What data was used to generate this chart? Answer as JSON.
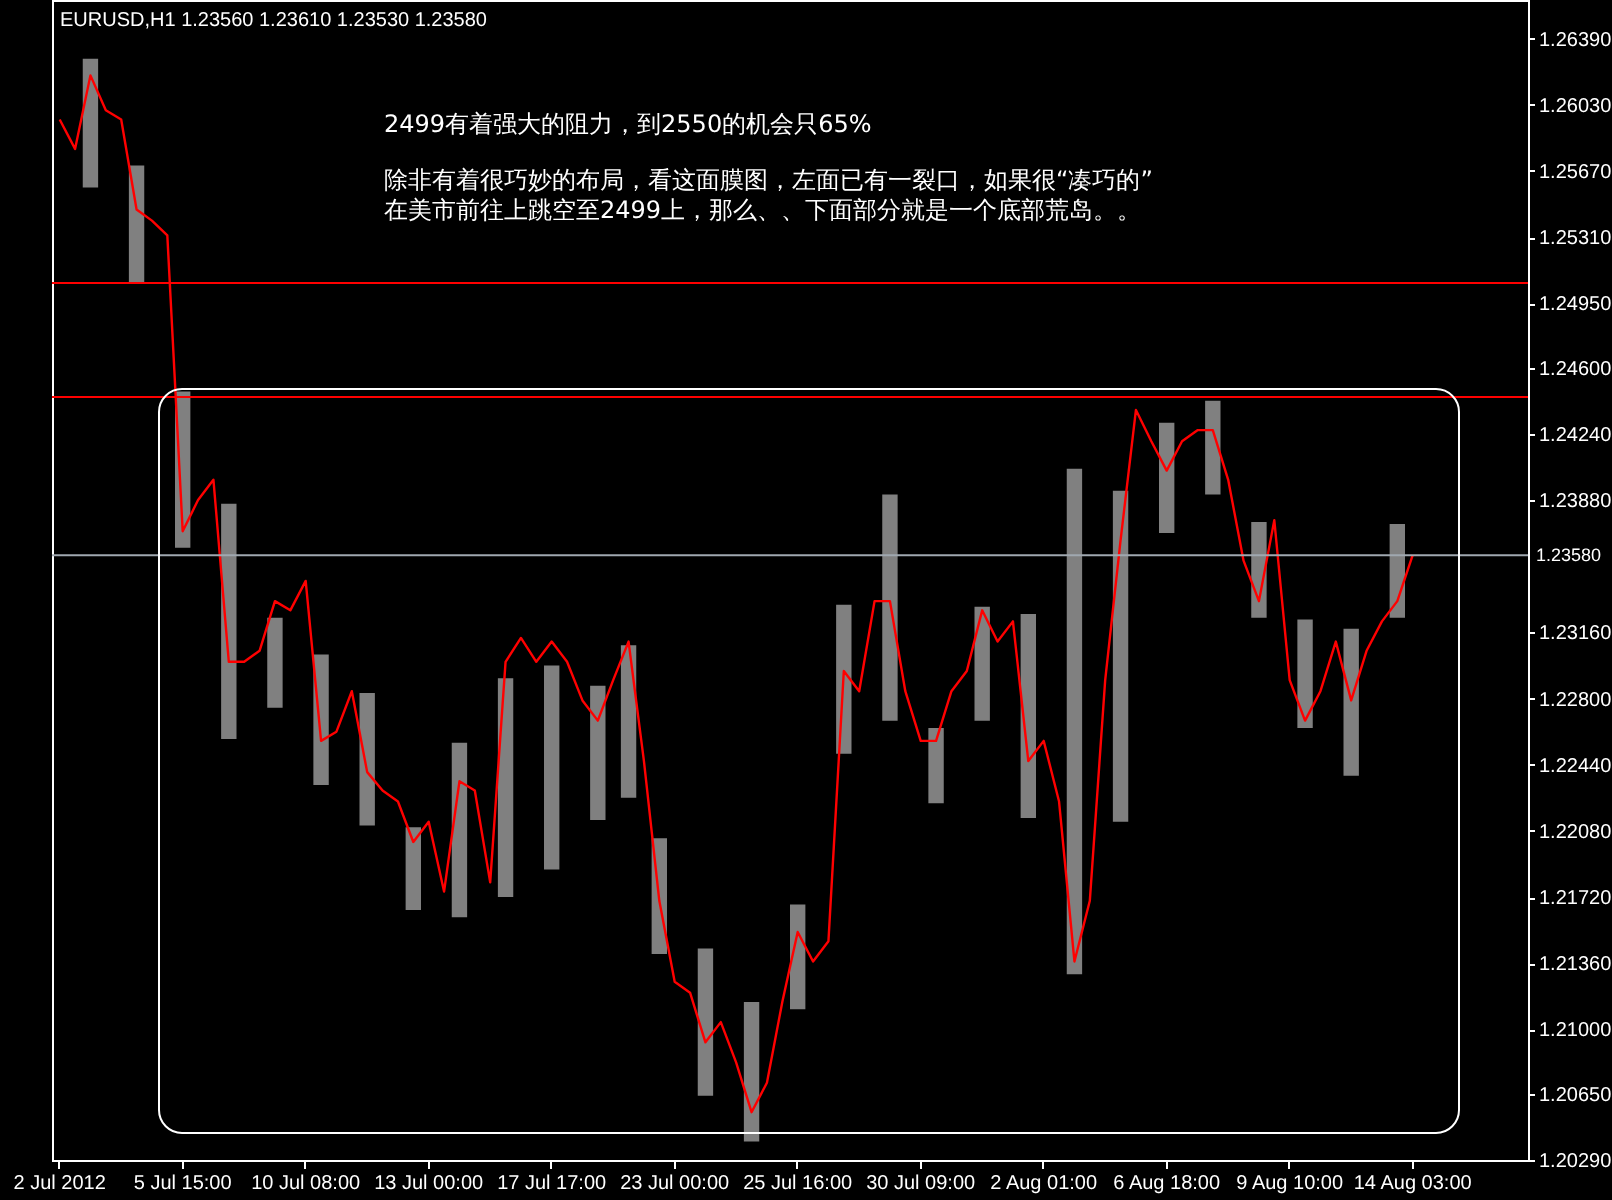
{
  "chart_data": {
    "type": "line",
    "title": "EURUSD,H1  1.23560 1.23610 1.23530 1.23580",
    "annotations": [
      "2499有着强大的阻力，到2550的机会只65%",
      "除非有着很巧妙的布局，看这面膜图，左面已有一裂口，如果很“凑巧的”",
      "在美市前往上跳空至2499上，那么、、下面部分就是一个底部荒岛。。"
    ],
    "categories": [
      "2 Jul 2012",
      null,
      null,
      null,
      null,
      null,
      null,
      null,
      "5 Jul 15:00",
      null,
      null,
      null,
      null,
      null,
      null,
      null,
      "10 Jul 08:00",
      null,
      null,
      null,
      null,
      null,
      null,
      null,
      "13 Jul 00:00",
      null,
      null,
      null,
      null,
      null,
      null,
      null,
      "17 Jul 17:00",
      null,
      null,
      null,
      null,
      null,
      null,
      null,
      "23 Jul 00:00",
      null,
      null,
      null,
      null,
      null,
      null,
      null,
      "25 Jul 16:00",
      null,
      null,
      null,
      null,
      null,
      null,
      null,
      "30 Jul 09:00",
      null,
      null,
      null,
      null,
      null,
      null,
      null,
      "2 Aug 01:00",
      null,
      null,
      null,
      null,
      null,
      null,
      null,
      "6 Aug 18:00",
      null,
      null,
      null,
      null,
      null,
      null,
      null,
      "9 Aug 10:00",
      null,
      null,
      null,
      null,
      null,
      null,
      null,
      "14 Aug 03:00",
      null,
      null,
      null,
      null,
      null,
      null,
      null
    ],
    "ylim": [
      1.2029,
      1.266
    ],
    "yticks": [
      {
        "value": 1.2029,
        "label": "1.20290"
      },
      {
        "value": 1.2065,
        "label": "1.20650"
      },
      {
        "value": 1.21,
        "label": "1.21000"
      },
      {
        "value": 1.2136,
        "label": "1.21360"
      },
      {
        "value": 1.2172,
        "label": "1.21720"
      },
      {
        "value": 1.2208,
        "label": "1.22080"
      },
      {
        "value": 1.2244,
        "label": "1.22440"
      },
      {
        "value": 1.228,
        "label": "1.22800"
      },
      {
        "value": 1.2316,
        "label": "1.23160"
      },
      {
        "value": 1.2388,
        "label": "1.23880"
      },
      {
        "value": 1.2424,
        "label": "1.24240"
      },
      {
        "value": 1.246,
        "label": "1.24600"
      },
      {
        "value": 1.2495,
        "label": "1.24950"
      },
      {
        "value": 1.2531,
        "label": "1.25310"
      },
      {
        "value": 1.2567,
        "label": "1.25670"
      },
      {
        "value": 1.2603,
        "label": "1.26030"
      },
      {
        "value": 1.2639,
        "label": "1.26390"
      }
    ],
    "ref_lines": [
      {
        "axis": "y",
        "value": 1.2506,
        "color": "#ff0000"
      },
      {
        "axis": "y",
        "value": 1.2444,
        "color": "#ff0000"
      },
      {
        "axis": "y",
        "value": 1.2358,
        "label": "1.23580",
        "color": "#a0a8b0"
      }
    ],
    "series": [
      {
        "type": "bar",
        "color": "#808080",
        "base": [
          null,
          null,
          1.2558,
          null,
          null,
          1.2506,
          null,
          null,
          1.2362,
          null,
          null,
          1.2258,
          null,
          null,
          1.2275,
          null,
          null,
          1.2233,
          null,
          null,
          1.2211,
          null,
          null,
          1.2165,
          null,
          null,
          1.2161,
          null,
          null,
          1.2172,
          null,
          null,
          1.2187,
          null,
          null,
          1.2214,
          null,
          1.2226,
          null,
          1.2141,
          null,
          null,
          1.2064,
          null,
          null,
          1.2039,
          null,
          null,
          1.2111,
          null,
          null,
          1.225,
          null,
          null,
          1.2268,
          null,
          null,
          1.2223,
          null,
          null,
          1.2268,
          null,
          null,
          1.2215,
          null,
          null,
          1.213,
          null,
          null,
          1.2213,
          null,
          null,
          1.237,
          null,
          null,
          1.2391,
          null,
          null,
          1.2324,
          null,
          null,
          1.2264,
          null,
          null,
          1.2238,
          null,
          null,
          1.2324,
          null,
          null,
          null,
          null,
          null,
          null,
          null,
          null
        ],
        "values": [
          null,
          null,
          0.007,
          null,
          null,
          0.0064,
          null,
          null,
          0.0085,
          null,
          null,
          0.0128,
          null,
          null,
          0.0049,
          null,
          null,
          0.0071,
          null,
          null,
          0.0072,
          null,
          null,
          0.0045,
          null,
          null,
          0.0095,
          null,
          null,
          0.0119,
          null,
          null,
          0.0111,
          null,
          null,
          0.0073,
          null,
          0.0083,
          null,
          0.0063,
          null,
          null,
          0.008,
          null,
          null,
          0.0076,
          null,
          null,
          0.0057,
          null,
          null,
          0.0081,
          null,
          null,
          0.0123,
          null,
          null,
          0.0041,
          null,
          null,
          0.0062,
          null,
          null,
          0.0111,
          null,
          null,
          0.0275,
          null,
          null,
          0.018,
          null,
          null,
          0.006,
          null,
          null,
          0.0051,
          null,
          null,
          0.0052,
          null,
          null,
          0.0059,
          null,
          null,
          0.008,
          null,
          null,
          0.0051,
          null,
          null,
          null,
          null,
          null,
          null,
          null,
          null
        ]
      },
      {
        "color": "#ff0000",
        "values": [
          1.2595,
          1.2579,
          1.2619,
          1.26,
          1.2595,
          1.2546,
          1.254,
          1.2532,
          1.2371,
          1.2388,
          1.2399,
          1.23,
          1.23,
          1.2306,
          1.2333,
          1.2328,
          1.2344,
          1.2257,
          1.2262,
          1.2284,
          1.224,
          1.223,
          1.2224,
          1.2202,
          1.2213,
          1.2175,
          1.2235,
          1.223,
          1.218,
          1.23,
          1.2313,
          1.23,
          1.2311,
          1.23,
          1.2279,
          1.2268,
          1.229,
          1.2311,
          1.2246,
          1.217,
          1.2126,
          1.212,
          1.2093,
          1.2104,
          1.2082,
          1.2055,
          1.2071,
          1.2115,
          1.2153,
          1.2137,
          1.2148,
          1.2295,
          1.2284,
          1.2333,
          1.2333,
          1.2284,
          1.2257,
          1.2257,
          1.2284,
          1.2295,
          1.2328,
          1.2311,
          1.2322,
          1.2246,
          1.2257,
          1.2224,
          1.2137,
          1.217,
          1.229,
          1.2366,
          1.2437,
          1.242,
          1.2404,
          1.242,
          1.2426,
          1.2426,
          1.2399,
          1.2355,
          1.2333,
          1.2377,
          1.229,
          1.2268,
          1.2284,
          1.2311,
          1.2279,
          1.2306,
          1.2322,
          1.2333,
          1.2358,
          null,
          null,
          null,
          null,
          null,
          null,
          null
        ]
      }
    ]
  }
}
